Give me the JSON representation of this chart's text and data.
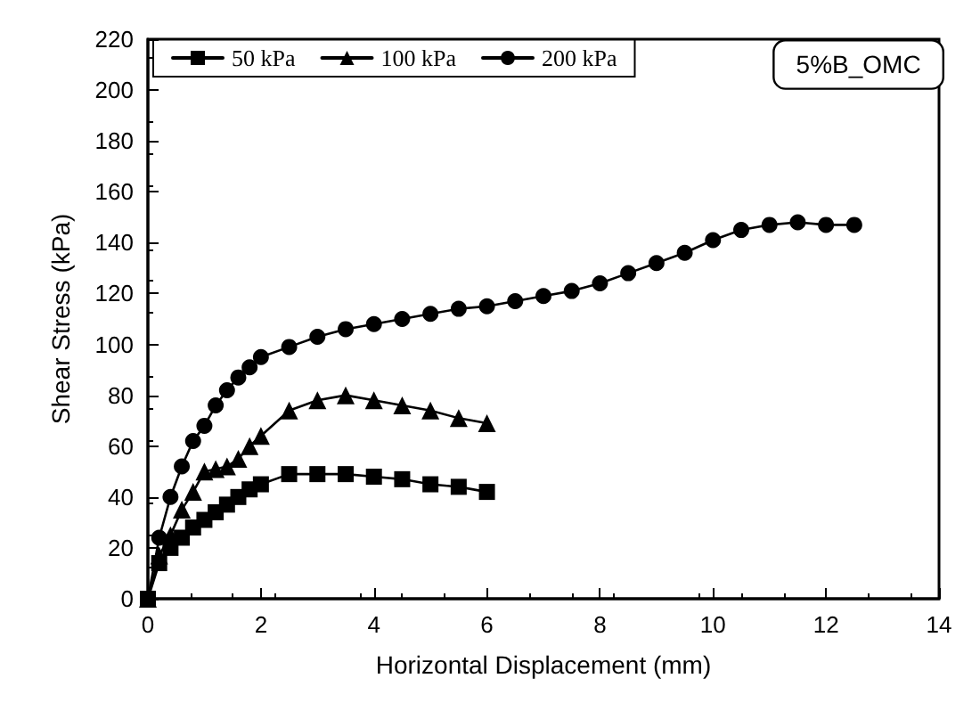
{
  "chart_data": {
    "type": "line",
    "xlabel": "Horizontal Displacement (mm)",
    "ylabel": "Shear Stress (kPa)",
    "annotations": [
      "5%B_OMC"
    ],
    "xlim": [
      0,
      14
    ],
    "xticks": [
      0,
      2,
      4,
      6,
      8,
      10,
      12,
      14
    ],
    "ylim": [
      0,
      220
    ],
    "yticks": [
      0,
      20,
      40,
      60,
      80,
      100,
      120,
      140,
      160,
      180,
      200,
      220
    ],
    "grid": false,
    "legend": "top left",
    "line_style": "solid",
    "series": [
      {
        "name": "50 kPa",
        "color": "#000000",
        "marker": "square",
        "x": [
          0,
          0.2,
          0.4,
          0.6,
          0.8,
          1.0,
          1.2,
          1.4,
          1.6,
          1.8,
          2.0,
          2.5,
          3,
          3.5,
          4,
          4.5,
          5,
          5.5,
          6
        ],
        "values": [
          0,
          14,
          20,
          24,
          28,
          31,
          34,
          37,
          40,
          43,
          45,
          49,
          49,
          49,
          48,
          47,
          45,
          44,
          42
        ]
      },
      {
        "name": "100 kPa",
        "color": "#000000",
        "marker": "triangle",
        "x": [
          0,
          0.2,
          0.4,
          0.6,
          0.8,
          1.0,
          1.2,
          1.4,
          1.6,
          1.8,
          2.0,
          2.5,
          3,
          3.5,
          4,
          4.5,
          5,
          5.5,
          6
        ],
        "values": [
          0,
          17,
          25,
          35,
          42,
          50,
          51,
          52,
          55,
          60,
          64,
          74,
          78,
          80,
          78,
          76,
          74,
          71,
          69
        ]
      },
      {
        "name": "200 kPa",
        "color": "#000000",
        "marker": "circle",
        "x": [
          0,
          0.2,
          0.4,
          0.6,
          0.8,
          1.0,
          1.2,
          1.4,
          1.6,
          1.8,
          2.0,
          2.5,
          3,
          3.5,
          4,
          4.5,
          5,
          5.5,
          6,
          6.5,
          7,
          7.5,
          8,
          8.5,
          9,
          9.5,
          10,
          10.5,
          11,
          11.5,
          12,
          12.5
        ],
        "values": [
          0,
          24,
          40,
          52,
          62,
          68,
          76,
          82,
          87,
          91,
          95,
          99,
          103,
          106,
          108,
          110,
          112,
          114,
          115,
          117,
          119,
          121,
          124,
          128,
          132,
          136,
          141,
          145,
          147,
          148,
          147,
          147
        ]
      }
    ]
  }
}
